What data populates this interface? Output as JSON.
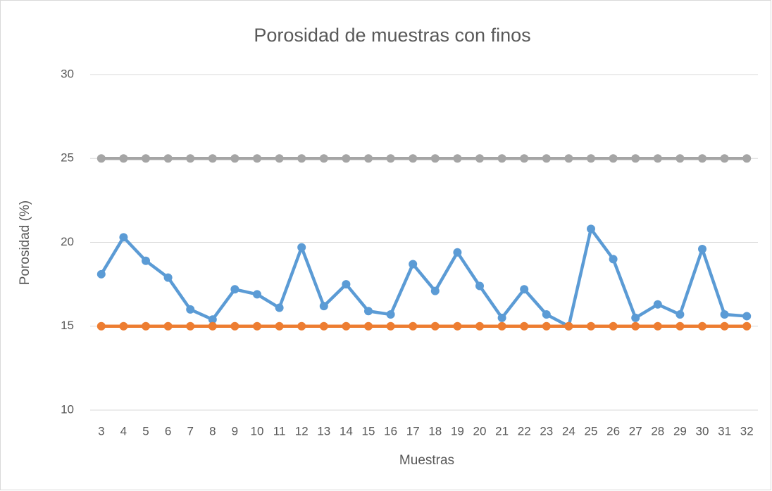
{
  "chart_data": {
    "type": "line",
    "title": "Porosidad de muestras con finos",
    "x_label": "Muestras",
    "y_label": "Porosidad (%)",
    "categories": [
      3,
      4,
      5,
      6,
      7,
      8,
      9,
      10,
      11,
      12,
      13,
      14,
      15,
      16,
      17,
      18,
      19,
      20,
      21,
      22,
      23,
      24,
      25,
      26,
      27,
      28,
      29,
      30,
      31,
      32
    ],
    "series": [
      {
        "color": "#5b9bd5",
        "values": [
          18.1,
          20.3,
          18.9,
          17.9,
          16.0,
          15.4,
          17.2,
          16.9,
          16.1,
          19.7,
          16.2,
          17.5,
          15.9,
          15.7,
          18.7,
          17.1,
          19.4,
          17.4,
          15.5,
          17.2,
          15.7,
          15.0,
          20.8,
          19.0,
          15.5,
          16.3,
          15.7,
          19.6,
          15.7,
          15.6
        ]
      },
      {
        "color": "#ed7d31",
        "values": [
          15,
          15,
          15,
          15,
          15,
          15,
          15,
          15,
          15,
          15,
          15,
          15,
          15,
          15,
          15,
          15,
          15,
          15,
          15,
          15,
          15,
          15,
          15,
          15,
          15,
          15,
          15,
          15,
          15,
          15
        ]
      },
      {
        "color": "#a5a5a5",
        "values": [
          25,
          25,
          25,
          25,
          25,
          25,
          25,
          25,
          25,
          25,
          25,
          25,
          25,
          25,
          25,
          25,
          25,
          25,
          25,
          25,
          25,
          25,
          25,
          25,
          25,
          25,
          25,
          25,
          25,
          25
        ]
      }
    ],
    "ylim": [
      10,
      30
    ],
    "yticks": [
      10,
      15,
      20,
      25,
      30
    ],
    "grid": true
  }
}
